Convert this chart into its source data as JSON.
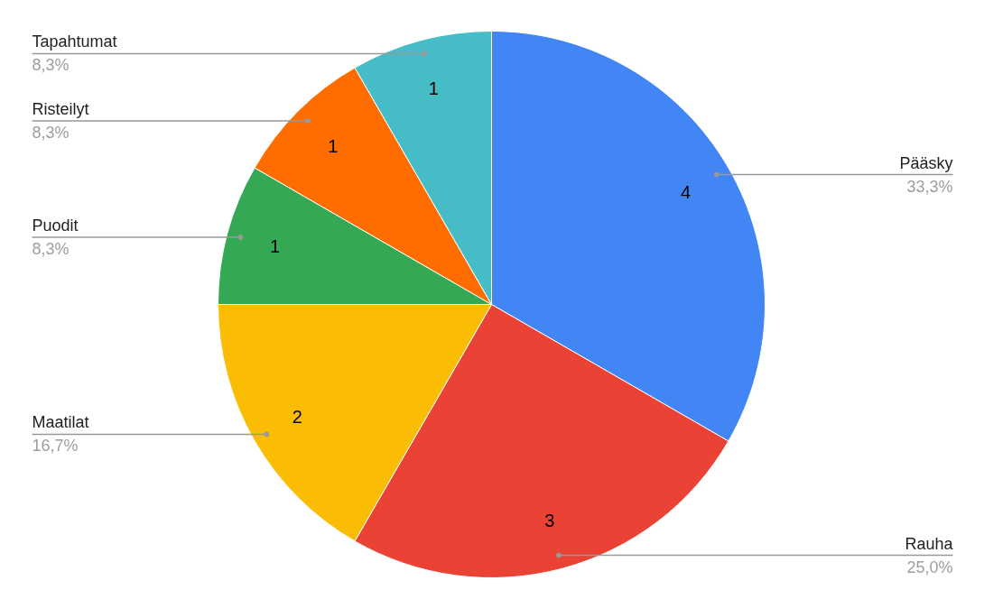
{
  "chart_data": {
    "type": "pie",
    "categories": [
      "Pääsky",
      "Rauha",
      "Maatilat",
      "Puodit",
      "Risteilyt",
      "Tapahtumat"
    ],
    "values": [
      4,
      3,
      2,
      1,
      1,
      1
    ],
    "colors": [
      "#4285f4",
      "#ea4335",
      "#fbbc04",
      "#34a853",
      "#ff6d01",
      "#46bdc6"
    ],
    "data_labels": true,
    "annotations": [
      "33,3%",
      "25,0%",
      "16,7%",
      "8,3%",
      "8,3%",
      "8,3%"
    ]
  }
}
